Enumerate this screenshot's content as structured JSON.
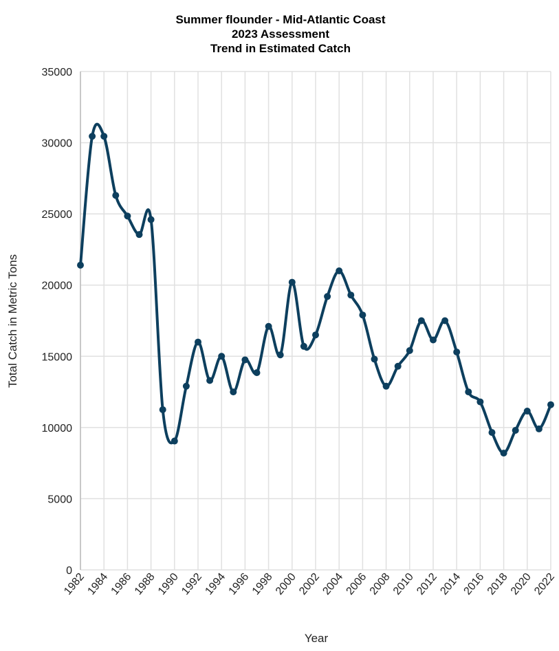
{
  "chart_data": {
    "type": "line",
    "title": [
      "Summer flounder - Mid-Atlantic Coast",
      "2023 Assessment",
      "Trend in Estimated Catch"
    ],
    "xlabel": "Year",
    "ylabel": "Total Catch in Metric Tons",
    "ylim": [
      0,
      35000
    ],
    "yticks": [
      0,
      5000,
      10000,
      15000,
      20000,
      25000,
      30000,
      35000
    ],
    "xticks": [
      1982,
      1984,
      1986,
      1988,
      1990,
      1992,
      1994,
      1996,
      1998,
      2000,
      2002,
      2004,
      2006,
      2008,
      2010,
      2012,
      2014,
      2016,
      2018,
      2020,
      2022
    ],
    "grid": true,
    "line_color": "#0d3f5e",
    "x": [
      1982,
      1983,
      1984,
      1985,
      1986,
      1987,
      1988,
      1989,
      1990,
      1991,
      1992,
      1993,
      1994,
      1995,
      1996,
      1997,
      1998,
      1999,
      2000,
      2001,
      2002,
      2003,
      2004,
      2005,
      2006,
      2007,
      2008,
      2009,
      2010,
      2011,
      2012,
      2013,
      2014,
      2015,
      2016,
      2017,
      2018,
      2019,
      2020,
      2021,
      2022
    ],
    "values": [
      21400,
      30450,
      30450,
      26300,
      24850,
      23550,
      24600,
      11250,
      9050,
      12900,
      16000,
      13300,
      15000,
      12500,
      14750,
      13850,
      17100,
      15100,
      20200,
      15700,
      16500,
      19200,
      21000,
      19300,
      17900,
      14800,
      12900,
      14300,
      15400,
      17500,
      16150,
      17500,
      15300,
      12500,
      11800,
      9650,
      8200,
      9800,
      11150,
      9900,
      11600
    ]
  }
}
